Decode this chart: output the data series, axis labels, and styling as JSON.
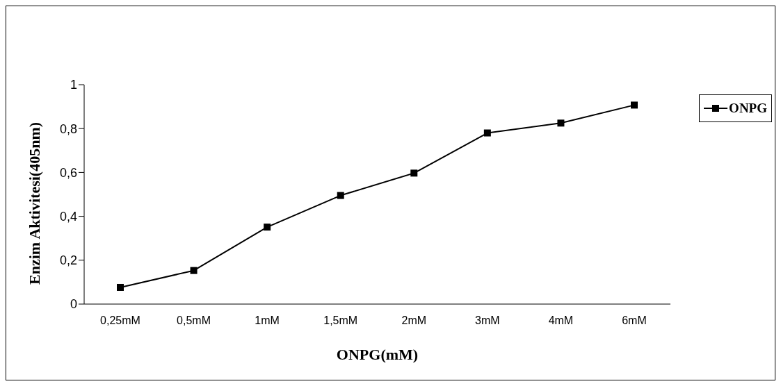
{
  "chart_data": {
    "type": "line",
    "xlabel": "ONPG(mM)",
    "ylabel": "Enzim Aktivitesi(405nm)",
    "categories": [
      "0,25mM",
      "0,5mM",
      "1mM",
      "1,5mM",
      "2mM",
      "3mM",
      "4mM",
      "6mM"
    ],
    "series": [
      {
        "name": "ONPG",
        "color": "#000000",
        "values": [
          0.076,
          0.153,
          0.351,
          0.495,
          0.597,
          0.78,
          0.825,
          0.907
        ]
      }
    ],
    "ylim": [
      0,
      1
    ],
    "yticks": [
      0,
      {
        "value": 0.2,
        "label": "0,2"
      },
      {
        "value": 0.4,
        "label": "0,4"
      },
      {
        "value": 0.6,
        "label": "0,6"
      },
      {
        "value": 0.8,
        "label": "0,8"
      },
      1
    ],
    "grid": false,
    "legend": "top right",
    "marker": "square",
    "line_style": "solid"
  }
}
